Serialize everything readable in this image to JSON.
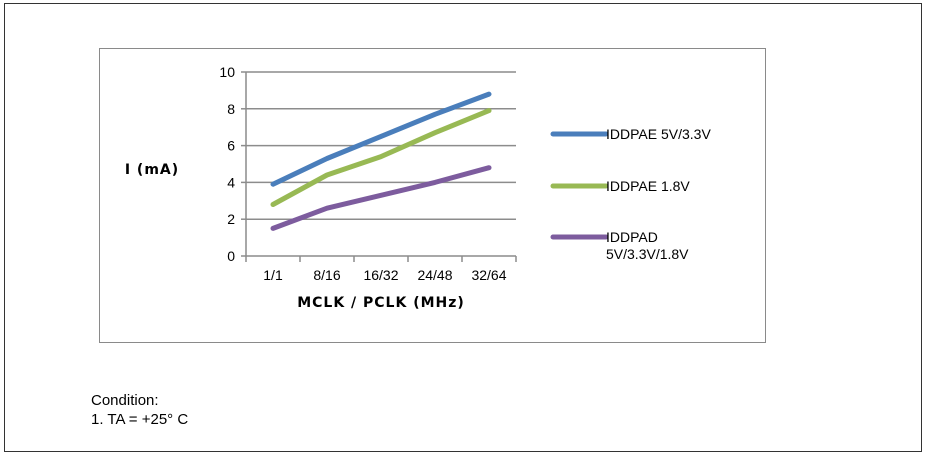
{
  "chart_data": {
    "type": "line",
    "categories": [
      "1/1",
      "8/16",
      "16/32",
      "24/48",
      "32/64"
    ],
    "series": [
      {
        "name": "IDDPAE 5V/3.3V",
        "values": [
          3.9,
          5.3,
          6.5,
          7.7,
          8.8
        ],
        "color": "#4a7ebb"
      },
      {
        "name": "IDDPAE 1.8V",
        "values": [
          2.8,
          4.4,
          5.4,
          6.7,
          7.9
        ],
        "color": "#98b954"
      },
      {
        "name": "IDDPAD 5V/3.3V/1.8V",
        "name_lines": [
          "IDDPAD",
          "5V/3.3V/1.8V"
        ],
        "values": [
          1.5,
          2.6,
          3.3,
          4.0,
          4.8
        ],
        "color": "#7d5c9e"
      }
    ],
    "yticks": [
      "0",
      "2",
      "4",
      "6",
      "8",
      "10"
    ],
    "xlabel": "MCLK / PCLK (MHz)",
    "ylabel": "I (mA)",
    "ylim": [
      0,
      10
    ],
    "grid": "horizontal",
    "legend": "right"
  },
  "note": {
    "line1": "Condition:",
    "line2": "1. TA = +25° C"
  }
}
